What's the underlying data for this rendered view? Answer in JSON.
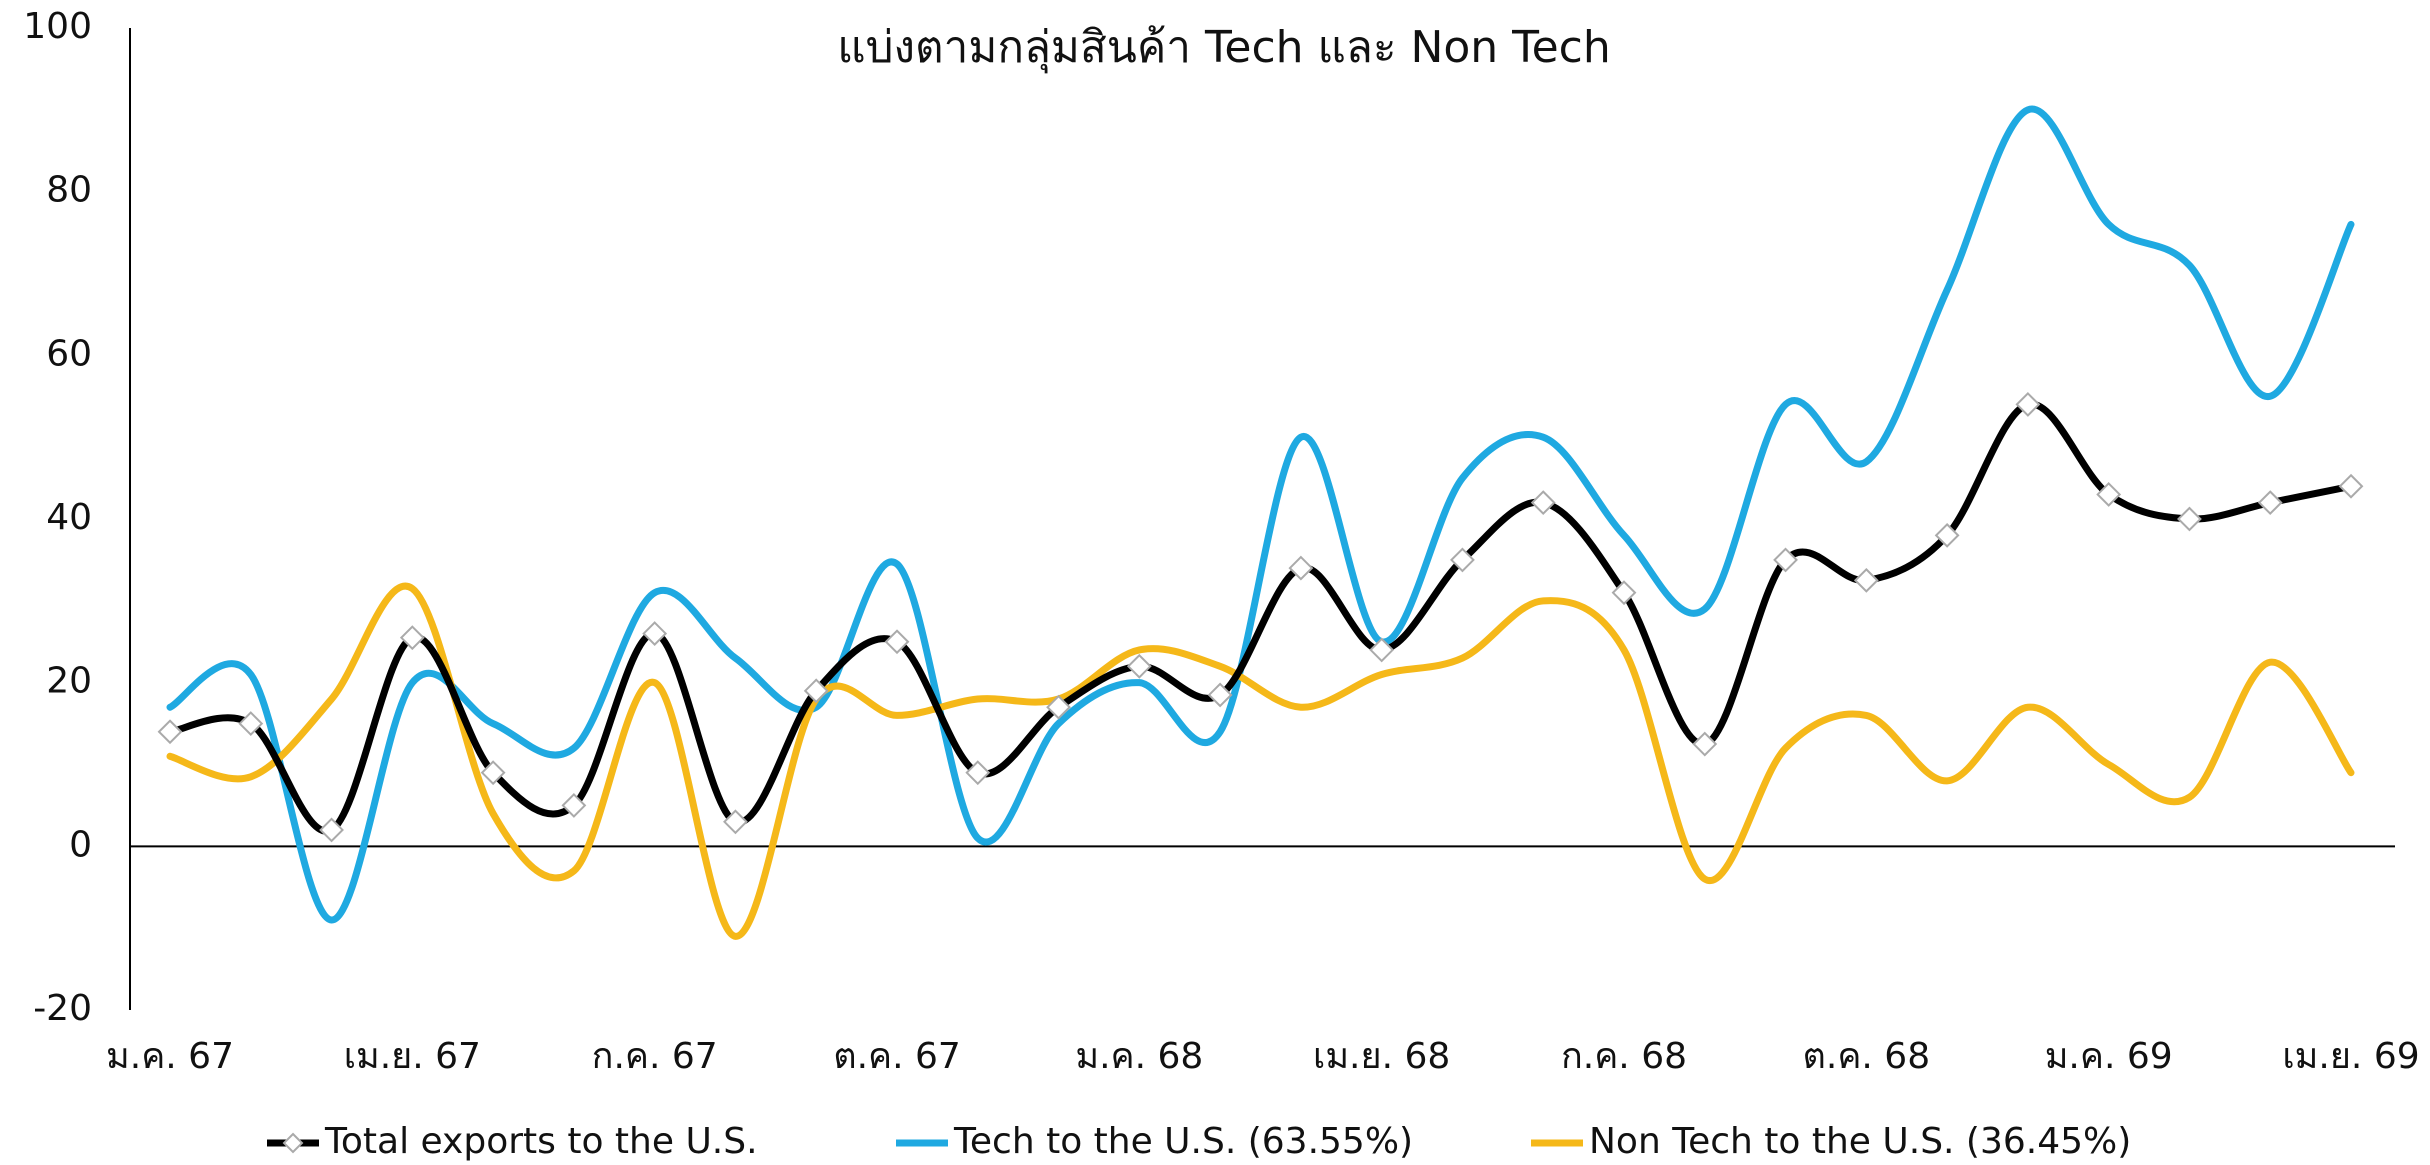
{
  "chart_data": {
    "type": "line",
    "title": "แบ่งตามกลุ่มสินค้า Tech และ Non Tech",
    "categories": [
      "ม.ค. 67",
      null,
      null,
      "เม.ย. 67",
      null,
      null,
      "ก.ค. 67",
      null,
      null,
      "ต.ค. 67",
      null,
      null,
      "ม.ค. 68",
      null,
      null,
      "เม.ย. 68",
      null,
      null,
      "ก.ค. 68",
      null,
      null,
      "ต.ค. 68",
      null,
      null,
      "ม.ค. 69",
      null,
      null,
      "เม.ย. 69"
    ],
    "series": [
      {
        "name": "Total exports to the U.S.",
        "color": "#000000",
        "marker": "diamond",
        "values": [
          14,
          15,
          2,
          25.5,
          9,
          5,
          26,
          3,
          19,
          25,
          9,
          17,
          22,
          18.5,
          34,
          24,
          35,
          42,
          31,
          12.5,
          35,
          32.5,
          38,
          54,
          43,
          40,
          42,
          44
        ]
      },
      {
        "name": "Tech to the U.S. (63.55%)",
        "color": "#1fa9e1",
        "values": [
          17,
          21,
          -9,
          20,
          15,
          12,
          31,
          23,
          17,
          34.5,
          1,
          15,
          20,
          14,
          50,
          25,
          45,
          50,
          38,
          29,
          54,
          47,
          68,
          90,
          76,
          71,
          55,
          76
        ]
      },
      {
        "name": "Non Tech to the U.S. (36.45%)",
        "color": "#f5b819",
        "values": [
          11,
          8.5,
          18,
          31.5,
          4,
          -3,
          20,
          -11,
          18,
          16,
          18,
          18,
          24,
          22,
          17,
          21,
          23,
          30,
          24,
          -4,
          12,
          16,
          8,
          17,
          10,
          6,
          22.5,
          9
        ]
      }
    ],
    "ylim": [
      -20,
      100
    ],
    "yticks": [
      -20,
      0,
      20,
      40,
      60,
      80,
      100
    ],
    "grid": false,
    "legend": "bottom"
  }
}
